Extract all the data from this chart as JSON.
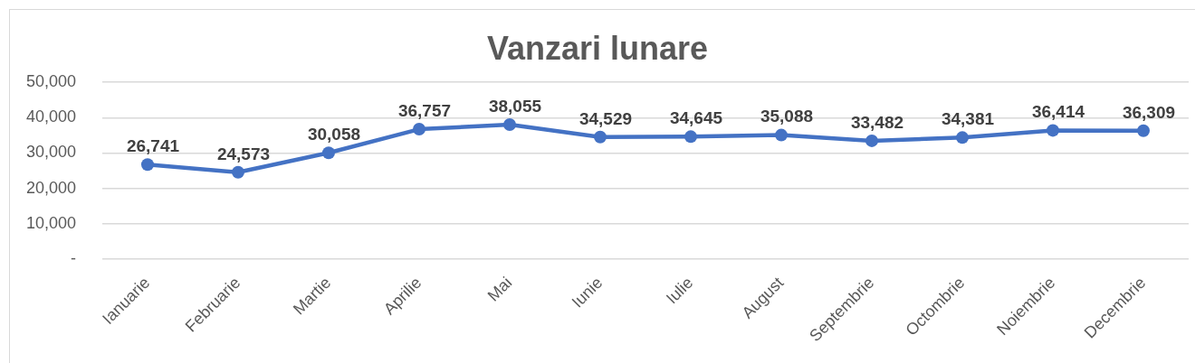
{
  "chart_data": {
    "type": "line",
    "title": "Vanzari lunare",
    "categories": [
      "Ianuarie",
      "Februarie",
      "Martie",
      "Aprilie",
      "Mai",
      "Iunie",
      "Iulie",
      "August",
      "Septembrie",
      "Octombrie",
      "Noiembrie",
      "Decembrie"
    ],
    "series": [
      {
        "color": "#4472c4",
        "values": [
          26741,
          24573,
          30058,
          36757,
          38055,
          34529,
          34645,
          35088,
          33482,
          34381,
          36414,
          36309
        ],
        "value_labels": [
          "26,741",
          "24,573",
          "30,058",
          "36,757",
          "38,055",
          "34,529",
          "34,645",
          "35,088",
          "33,482",
          "34,381",
          "36,414",
          "36,309"
        ]
      }
    ],
    "ylim": [
      0,
      50000
    ],
    "yticks": [
      {
        "value": 0,
        "label": "-"
      },
      {
        "value": 10000,
        "label": "10,000"
      },
      {
        "value": 20000,
        "label": "20,000"
      },
      {
        "value": 30000,
        "label": "30,000"
      },
      {
        "value": 40000,
        "label": "40,000"
      },
      {
        "value": 50000,
        "label": "50,000"
      }
    ],
    "grid": "y",
    "legend": false,
    "marker": "circle",
    "line_style": "solid"
  }
}
